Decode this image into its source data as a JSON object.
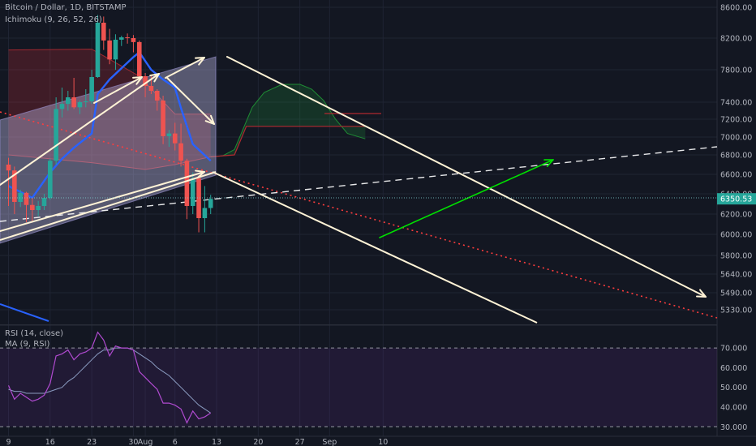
{
  "header": {
    "symbol": "Bitcoin / Dollar, 1D, BITSTAMP",
    "indicator": "Ichimoku (9, 26, 52, 26)",
    "rsi_label": "RSI (14, close)",
    "ma_label": "MA (9, RSI)"
  },
  "colors": {
    "background": "#131722",
    "up": "#26a69a",
    "down": "#ef5350",
    "base_line": "#2962ff",
    "annotation": "#fff3d6",
    "arrow_green": "#00e000",
    "trend_red": "#ff3d3d",
    "rsi": "#b04ad0",
    "rsi_ma": "#8a9bc0"
  },
  "chart_data": [
    {
      "type": "candlestick",
      "title": "Bitcoin / Dollar, 1D, BITSTAMP",
      "xlabel": "",
      "ylabel": "",
      "x_tick_labels": [
        "9",
        "16",
        "23",
        "30",
        "Aug",
        "6",
        "13",
        "20",
        "27",
        "Sep",
        "10"
      ],
      "y_tick_labels": [
        "8600.00",
        "8200.00",
        "7800.00",
        "7400.00",
        "7200.00",
        "7000.00",
        "6800.00",
        "6600.00",
        "6400.00",
        "6200.00",
        "6000.00",
        "5800.00",
        "5640.00",
        "5490.00",
        "5330.00"
      ],
      "last_price": "6350.53",
      "candles": [
        {
          "d": "Jul 9",
          "o": 6700,
          "h": 6770,
          "l": 6280,
          "c": 6640
        },
        {
          "d": "Jul 10",
          "o": 6640,
          "h": 6680,
          "l": 6200,
          "c": 6320
        },
        {
          "d": "Jul 11",
          "o": 6320,
          "h": 6440,
          "l": 6270,
          "c": 6410
        },
        {
          "d": "Jul 12",
          "o": 6410,
          "h": 6420,
          "l": 6120,
          "c": 6290
        },
        {
          "d": "Jul 13",
          "o": 6290,
          "h": 6360,
          "l": 6120,
          "c": 6240
        },
        {
          "d": "Jul 14",
          "o": 6240,
          "h": 6330,
          "l": 6180,
          "c": 6280
        },
        {
          "d": "Jul 15",
          "o": 6280,
          "h": 6400,
          "l": 6240,
          "c": 6360
        },
        {
          "d": "Jul 16",
          "o": 6360,
          "h": 6760,
          "l": 6340,
          "c": 6740
        },
        {
          "d": "Jul 17",
          "o": 6740,
          "h": 7460,
          "l": 6700,
          "c": 7320
        },
        {
          "d": "Jul 18",
          "o": 7320,
          "h": 7580,
          "l": 7220,
          "c": 7380
        },
        {
          "d": "Jul 19",
          "o": 7380,
          "h": 7540,
          "l": 7300,
          "c": 7460
        },
        {
          "d": "Jul 20",
          "o": 7460,
          "h": 7700,
          "l": 7320,
          "c": 7340
        },
        {
          "d": "Jul 21",
          "o": 7340,
          "h": 7420,
          "l": 7260,
          "c": 7400
        },
        {
          "d": "Jul 22",
          "o": 7400,
          "h": 7560,
          "l": 7340,
          "c": 7410
        },
        {
          "d": "Jul 23",
          "o": 7410,
          "h": 7800,
          "l": 7380,
          "c": 7710
        },
        {
          "d": "Jul 24",
          "o": 7710,
          "h": 8500,
          "l": 7700,
          "c": 8400
        },
        {
          "d": "Jul 25",
          "o": 8400,
          "h": 8480,
          "l": 8050,
          "c": 8170
        },
        {
          "d": "Jul 26",
          "o": 8170,
          "h": 8320,
          "l": 7870,
          "c": 7930
        },
        {
          "d": "Jul 27",
          "o": 7930,
          "h": 8250,
          "l": 7800,
          "c": 8180
        },
        {
          "d": "Jul 28",
          "o": 8180,
          "h": 8230,
          "l": 8100,
          "c": 8210
        },
        {
          "d": "Jul 29",
          "o": 8210,
          "h": 8260,
          "l": 8130,
          "c": 8200
        },
        {
          "d": "Jul 30",
          "o": 8200,
          "h": 8240,
          "l": 8020,
          "c": 8150
        },
        {
          "d": "Jul 31",
          "o": 8150,
          "h": 8170,
          "l": 7680,
          "c": 7720
        },
        {
          "d": "Aug 1",
          "o": 7720,
          "h": 7760,
          "l": 7460,
          "c": 7600
        },
        {
          "d": "Aug 2",
          "o": 7600,
          "h": 7720,
          "l": 7500,
          "c": 7540
        },
        {
          "d": "Aug 3",
          "o": 7540,
          "h": 7560,
          "l": 7300,
          "c": 7420
        },
        {
          "d": "Aug 4",
          "o": 7420,
          "h": 7480,
          "l": 6920,
          "c": 7010
        },
        {
          "d": "Aug 5",
          "o": 7010,
          "h": 7080,
          "l": 6890,
          "c": 7040
        },
        {
          "d": "Aug 6",
          "o": 7040,
          "h": 7160,
          "l": 6850,
          "c": 6930
        },
        {
          "d": "Aug 7",
          "o": 6930,
          "h": 7150,
          "l": 6680,
          "c": 6740
        },
        {
          "d": "Aug 8",
          "o": 6740,
          "h": 6760,
          "l": 6150,
          "c": 6280
        },
        {
          "d": "Aug 9",
          "o": 6280,
          "h": 6620,
          "l": 6200,
          "c": 6560
        },
        {
          "d": "Aug 10",
          "o": 6560,
          "h": 6590,
          "l": 6020,
          "c": 6160
        },
        {
          "d": "Aug 11",
          "o": 6160,
          "h": 6480,
          "l": 6020,
          "c": 6260
        },
        {
          "d": "Aug 12",
          "o": 6260,
          "h": 6390,
          "l": 6200,
          "c": 6350
        }
      ],
      "base_line": [
        {
          "d": "Jul 9",
          "v": 6480
        },
        {
          "d": "Jul 13",
          "v": 6360
        },
        {
          "d": "Jul 16",
          "v": 6620
        },
        {
          "d": "Jul 18",
          "v": 6760
        },
        {
          "d": "Jul 20",
          "v": 6880
        },
        {
          "d": "Jul 23",
          "v": 7040
        },
        {
          "d": "Jul 24",
          "v": 7500
        },
        {
          "d": "Jul 26",
          "v": 7680
        },
        {
          "d": "Jul 30",
          "v": 7960
        },
        {
          "d": "Jul 31",
          "v": 8020
        },
        {
          "d": "Aug 2",
          "v": 7800
        },
        {
          "d": "Aug 4",
          "v": 7680
        },
        {
          "d": "Aug 6",
          "v": 7580
        },
        {
          "d": "Aug 7",
          "v": 7330
        },
        {
          "d": "Aug 9",
          "v": 6920
        },
        {
          "d": "Aug 12",
          "v": 6740
        }
      ],
      "kumo": {
        "red_cloud_span_a": [
          {
            "d": "Jul 9",
            "v": 8050
          },
          {
            "d": "Jul 23",
            "v": 8060
          },
          {
            "d": "Jul 31",
            "v": 7720
          },
          {
            "d": "Aug 6",
            "v": 7260
          },
          {
            "d": "Aug 12",
            "v": 7260
          }
        ],
        "red_cloud_span_b": [
          {
            "d": "Jul 9",
            "v": 6800
          },
          {
            "d": "Jul 23",
            "v": 6720
          },
          {
            "d": "Aug 1",
            "v": 6650
          },
          {
            "d": "Aug 6",
            "v": 6700
          },
          {
            "d": "Aug 12",
            "v": 6780
          }
        ],
        "green_cloud_span_a": [
          {
            "d": "Aug 12",
            "v": 6780
          },
          {
            "d": "Aug 14",
            "v": 6790
          },
          {
            "d": "Aug 16",
            "v": 6860
          },
          {
            "d": "Aug 19",
            "v": 7340
          },
          {
            "d": "Aug 21",
            "v": 7520
          },
          {
            "d": "Aug 24",
            "v": 7620
          },
          {
            "d": "Aug 27",
            "v": 7620
          },
          {
            "d": "Aug 29",
            "v": 7560
          },
          {
            "d": "Aug 31",
            "v": 7420
          },
          {
            "d": "Sep 2",
            "v": 7200
          },
          {
            "d": "Sep 4",
            "v": 7040
          },
          {
            "d": "Sep 7",
            "v": 6980
          }
        ],
        "green_cloud_span_b": [
          {
            "d": "Aug 12",
            "v": 6780
          },
          {
            "d": "Aug 16",
            "v": 6800
          },
          {
            "d": "Aug 18",
            "v": 7120
          },
          {
            "d": "Sep 7",
            "v": 7120
          }
        ]
      },
      "annotations": {
        "channel": "descending parallel channel",
        "dashed_support": "white dashed trendline",
        "dotted_trend": "red dotted trendline",
        "green_arrow": "projected rise"
      }
    },
    {
      "type": "line",
      "title": "RSI (14, close)",
      "xlabel": "",
      "ylabel": "",
      "ylim": [
        26,
        82
      ],
      "bands": [
        30,
        70
      ],
      "y_tick_labels": [
        "70.000",
        "60.000",
        "50.000",
        "40.000",
        "30.000"
      ],
      "series": [
        {
          "name": "RSI (14, close)",
          "values": [
            51,
            44,
            47,
            45,
            43,
            44,
            46,
            52,
            66,
            67,
            69,
            64,
            67,
            68,
            70,
            78,
            74,
            66,
            71,
            70,
            70,
            69,
            58,
            55,
            52,
            49,
            42,
            42,
            41,
            39,
            32,
            38,
            34,
            35,
            37
          ]
        },
        {
          "name": "MA (9, RSI)",
          "values": [
            49,
            48,
            48,
            47,
            47,
            47,
            47,
            48,
            49,
            50,
            53,
            55,
            58,
            61,
            64,
            67,
            69,
            69,
            70,
            70,
            70,
            69,
            67,
            65,
            63,
            60,
            58,
            56,
            53,
            50,
            47,
            44,
            41,
            39,
            37
          ]
        }
      ]
    }
  ]
}
